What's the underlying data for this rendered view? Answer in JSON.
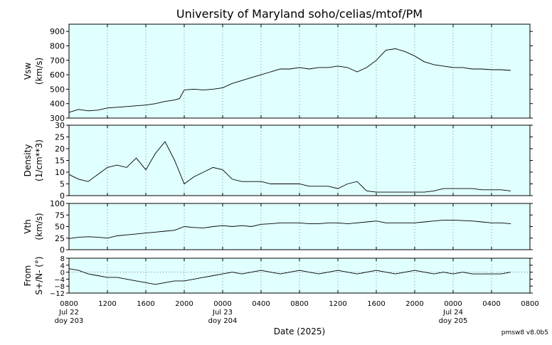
{
  "chart_data": {
    "type": "line",
    "title": "University of Maryland  soho/celias/mtof/PM",
    "xlabel": "Date (2025)",
    "version_label": "pmsw8 v8.0b5",
    "x_unit": "hours since 2025-07-22 08:00",
    "x_ticks": [
      {
        "label": "0800",
        "line2": "Jul 22",
        "line3": "doy 203"
      },
      {
        "label": "1200"
      },
      {
        "label": "1600"
      },
      {
        "label": "2000"
      },
      {
        "label": "0000",
        "line2": "Jul 23",
        "line3": "doy 204"
      },
      {
        "label": "0400"
      },
      {
        "label": "0800"
      },
      {
        "label": "1200"
      },
      {
        "label": "1600"
      },
      {
        "label": "2000"
      },
      {
        "label": "0000",
        "line2": "Jul 24",
        "line3": "doy 205"
      },
      {
        "label": "0400"
      },
      {
        "label": "0800"
      }
    ],
    "xlim": [
      0,
      48
    ],
    "grid": "vertical dotted at each 4-hour tick",
    "background_color": "#e0ffff",
    "line_color": "#000000",
    "panels": [
      {
        "ylabel1": "Vsw",
        "ylabel2": "(km/s)",
        "ylim": [
          300,
          950
        ],
        "yticks": [
          300,
          400,
          500,
          600,
          700,
          800,
          900
        ],
        "zero_line": false,
        "series": {
          "x": [
            0,
            1,
            2,
            3,
            4,
            5,
            6,
            7,
            8,
            9,
            10,
            11,
            11.5,
            12,
            13,
            14,
            15,
            16,
            17,
            18,
            19,
            20,
            21,
            22,
            23,
            24,
            25,
            26,
            27,
            28,
            29,
            30,
            31,
            32,
            33,
            34,
            35,
            36,
            37,
            38,
            39,
            40,
            41,
            42,
            43,
            44,
            45,
            46,
            47,
            48
          ],
          "y": [
            340,
            360,
            350,
            355,
            370,
            375,
            380,
            385,
            390,
            400,
            415,
            425,
            435,
            495,
            500,
            495,
            500,
            510,
            540,
            560,
            580,
            600,
            620,
            640,
            640,
            650,
            640,
            650,
            650,
            660,
            650,
            620,
            650,
            700,
            770,
            780,
            760,
            730,
            690,
            670,
            660,
            650,
            650,
            640,
            640,
            635,
            635,
            630,
            null,
            null
          ]
        }
      },
      {
        "ylabel1": "Density",
        "ylabel2": "(1/cm**3)",
        "ylim": [
          0,
          30
        ],
        "yticks": [
          0,
          5,
          10,
          15,
          20,
          25,
          30
        ],
        "zero_line": false,
        "series": {
          "x": [
            0,
            1,
            2,
            3,
            4,
            5,
            6,
            7,
            8,
            9,
            10,
            11,
            12,
            13,
            14,
            15,
            16,
            17,
            18,
            19,
            20,
            21,
            22,
            23,
            24,
            25,
            26,
            27,
            28,
            29,
            30,
            31,
            32,
            33,
            34,
            35,
            36,
            37,
            38,
            39,
            40,
            41,
            42,
            43,
            44,
            45,
            46,
            47,
            48
          ],
          "y": [
            9,
            7,
            6,
            9,
            12,
            13,
            12,
            16,
            11,
            18,
            23,
            15,
            5,
            8,
            10,
            12,
            11,
            7,
            6,
            6,
            6,
            5,
            5,
            5,
            5,
            4,
            4,
            4,
            3,
            5,
            6,
            2,
            1.5,
            1.5,
            1.5,
            1.5,
            1.5,
            1.5,
            2,
            3,
            3,
            3,
            3,
            2.5,
            2.5,
            2.5,
            2,
            null,
            null
          ]
        }
      },
      {
        "ylabel1": "Vth",
        "ylabel2": "(km/s)",
        "ylim": [
          0,
          100
        ],
        "yticks": [
          0,
          25,
          50,
          75,
          100
        ],
        "zero_line": false,
        "series": {
          "x": [
            0,
            1,
            2,
            3,
            4,
            5,
            6,
            7,
            8,
            9,
            10,
            11,
            12,
            13,
            14,
            15,
            16,
            17,
            18,
            19,
            20,
            21,
            22,
            23,
            24,
            25,
            26,
            27,
            28,
            29,
            30,
            31,
            32,
            33,
            34,
            35,
            36,
            37,
            38,
            39,
            40,
            41,
            42,
            43,
            44,
            45,
            46,
            47,
            48
          ],
          "y": [
            24,
            27,
            28,
            27,
            25,
            30,
            32,
            34,
            36,
            38,
            40,
            42,
            50,
            48,
            47,
            50,
            52,
            50,
            52,
            50,
            55,
            56,
            58,
            58,
            58,
            56,
            56,
            58,
            58,
            56,
            58,
            60,
            62,
            58,
            58,
            58,
            58,
            60,
            62,
            64,
            64,
            63,
            62,
            60,
            58,
            58,
            56,
            null,
            null
          ]
        }
      },
      {
        "ylabel1": "From",
        "ylabel2": "S+/N- (°)",
        "ylim": [
          -12,
          8
        ],
        "yticks": [
          -12,
          -8,
          -4,
          0,
          4,
          8
        ],
        "zero_line": true,
        "series": {
          "x": [
            0,
            1,
            2,
            3,
            4,
            5,
            6,
            7,
            8,
            9,
            10,
            11,
            12,
            13,
            14,
            15,
            16,
            17,
            18,
            19,
            20,
            21,
            22,
            23,
            24,
            25,
            26,
            27,
            28,
            29,
            30,
            31,
            32,
            33,
            34,
            35,
            36,
            37,
            38,
            39,
            40,
            41,
            42,
            43,
            44,
            45,
            46,
            47,
            48
          ],
          "y": [
            2,
            1,
            -1,
            -2,
            -3,
            -3,
            -4,
            -5,
            -6,
            -7,
            -6,
            -5,
            -5,
            -4,
            -3,
            -2,
            -1,
            0,
            -1,
            0,
            1,
            0,
            -1,
            0,
            1,
            0,
            -1,
            0,
            1,
            0,
            -1,
            0,
            1,
            0,
            -1,
            0,
            1,
            0,
            -1,
            0,
            -1,
            0,
            -1,
            -1,
            -1,
            -1,
            0,
            null,
            null
          ]
        }
      }
    ]
  }
}
